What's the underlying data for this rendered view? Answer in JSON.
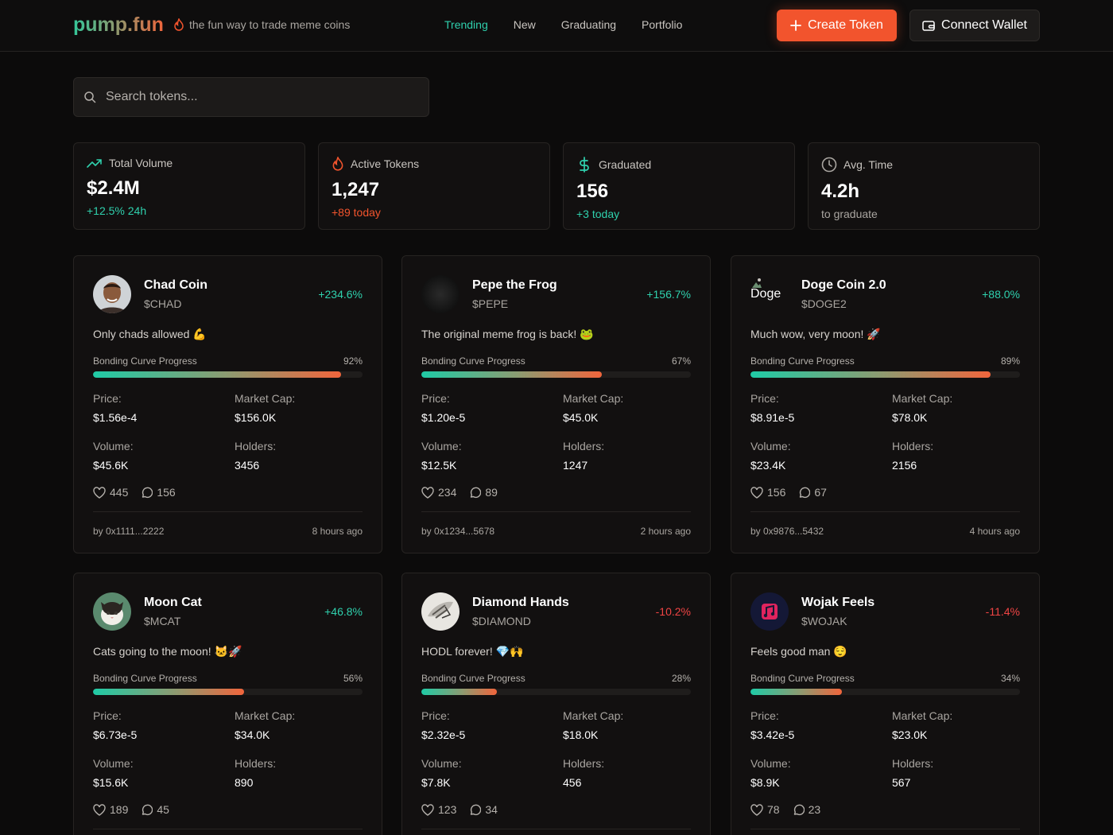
{
  "header": {
    "logo": "pump.fun",
    "tagline": "the fun way to trade meme coins",
    "nav": [
      "Trending",
      "New",
      "Graduating",
      "Portfolio"
    ],
    "create_label": "Create Token",
    "wallet_label": "Connect Wallet"
  },
  "search": {
    "placeholder": "Search tokens..."
  },
  "stats": [
    {
      "label": "Total Volume",
      "value": "$2.4M",
      "sub": "+12.5% 24h",
      "icon": "trending-up-icon"
    },
    {
      "label": "Active Tokens",
      "value": "1,247",
      "sub": "+89 today",
      "icon": "flame-icon"
    },
    {
      "label": "Graduated",
      "value": "156",
      "sub": "+3 today",
      "icon": "dollar-icon"
    },
    {
      "label": "Avg. Time",
      "value": "4.2h",
      "sub": "to graduate",
      "icon": "clock-icon"
    }
  ],
  "labels": {
    "progress": "Bonding Curve Progress",
    "price": "Price:",
    "market_cap": "Market Cap:",
    "volume": "Volume:",
    "holders": "Holders:"
  },
  "tokens": [
    {
      "name": "Chad Coin",
      "ticker": "$CHAD",
      "change": "+234.6%",
      "desc": "Only chads allowed 💪",
      "progress": "92%",
      "price": "$1.56e-4",
      "market_cap": "$156.0K",
      "volume": "$45.6K",
      "holders": "3456",
      "likes": "445",
      "comments": "156",
      "creator": "by 0x1111...2222",
      "time": "8 hours ago"
    },
    {
      "name": "Pepe the Frog",
      "ticker": "$PEPE",
      "change": "+156.7%",
      "desc": "The original meme frog is back! 🐸",
      "progress": "67%",
      "price": "$1.20e-5",
      "market_cap": "$45.0K",
      "volume": "$12.5K",
      "holders": "1247",
      "likes": "234",
      "comments": "89",
      "creator": "by 0x1234...5678",
      "time": "2 hours ago"
    },
    {
      "name": "Doge Coin 2.0",
      "ticker": "$DOGE2",
      "change": "+88.0%",
      "desc": "Much wow, very moon! 🚀",
      "progress": "89%",
      "price": "$8.91e-5",
      "market_cap": "$78.0K",
      "volume": "$23.4K",
      "holders": "2156",
      "likes": "156",
      "comments": "67",
      "creator": "by 0x9876...5432",
      "time": "4 hours ago",
      "avatar_alt": "Doge"
    },
    {
      "name": "Moon Cat",
      "ticker": "$MCAT",
      "change": "+46.8%",
      "desc": "Cats going to the moon! 🐱🚀",
      "progress": "56%",
      "price": "$6.73e-5",
      "market_cap": "$34.0K",
      "volume": "$15.6K",
      "holders": "890",
      "likes": "189",
      "comments": "45"
    },
    {
      "name": "Diamond Hands",
      "ticker": "$DIAMOND",
      "change": "-10.2%",
      "desc": "HODL forever! 💎🙌",
      "progress": "28%",
      "price": "$2.32e-5",
      "market_cap": "$18.0K",
      "volume": "$7.8K",
      "holders": "456",
      "likes": "123",
      "comments": "34"
    },
    {
      "name": "Wojak Feels",
      "ticker": "$WOJAK",
      "change": "-11.4%",
      "desc": "Feels good man 😌",
      "progress": "34%",
      "price": "$3.42e-5",
      "market_cap": "$23.0K",
      "volume": "$8.9K",
      "holders": "567",
      "likes": "78",
      "comments": "23"
    }
  ],
  "colors": {
    "accent_green": "#2fd0ad",
    "accent_orange": "#f2542d",
    "background": "#0c0b0b"
  }
}
